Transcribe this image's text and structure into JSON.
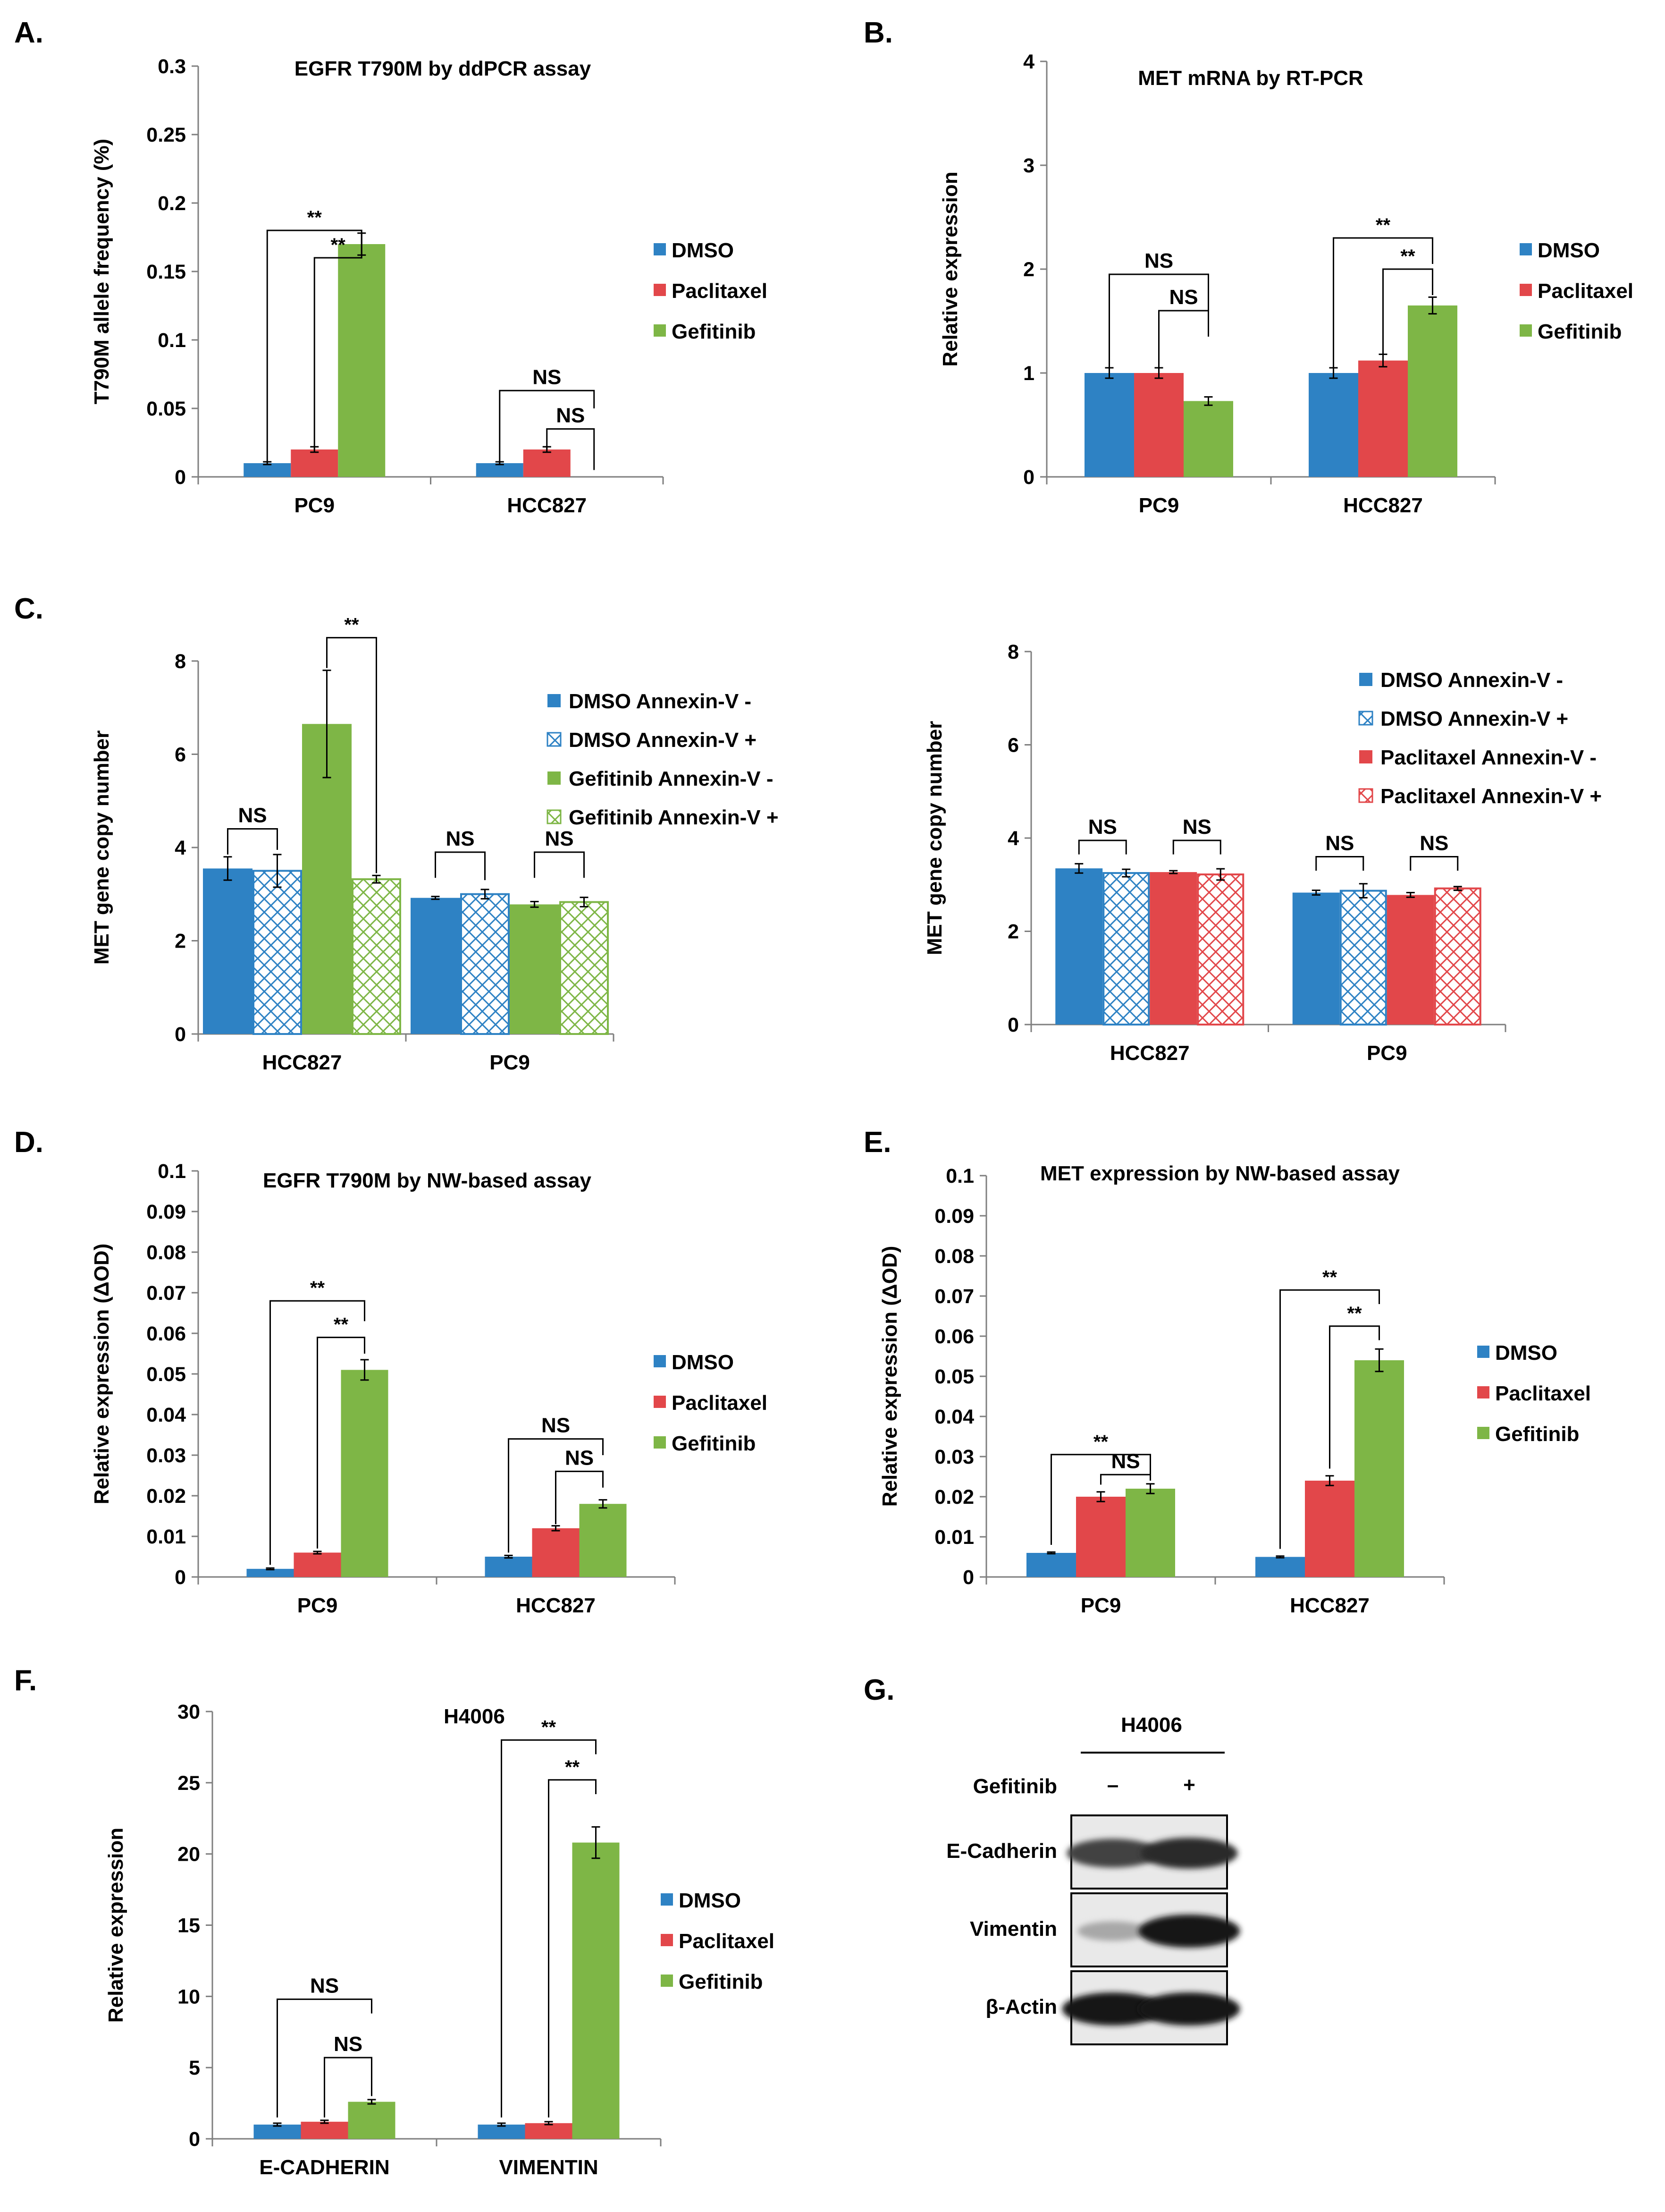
{
  "colors": {
    "DMSO": "#2E82C4",
    "Paclitaxel": "#E2474A",
    "Gefitinib": "#7EB646",
    "axis": "#7f7f7f",
    "text": "#000000"
  },
  "chart_data": [
    {
      "id": "A",
      "panel_label": "A.",
      "type": "bar",
      "title": "EGFR T790M by ddPCR assay",
      "ylabel": "T790M allele frequency (%)",
      "xlabel": "",
      "ylim": [
        0,
        0.3
      ],
      "yticks": [
        0,
        0.05,
        0.1,
        0.15,
        0.2,
        0.25,
        0.3
      ],
      "ytick_labels": [
        "0",
        "0.05",
        "0.1",
        "0.15",
        "0.2",
        "0.25",
        "0.3"
      ],
      "categories": [
        "PC9",
        "HCC827"
      ],
      "series": [
        {
          "name": "DMSO",
          "values": [
            0.01,
            0.01
          ],
          "errors": [
            0.001,
            0.001
          ]
        },
        {
          "name": "Paclitaxel",
          "values": [
            0.02,
            0.02
          ],
          "errors": [
            0.002,
            0.002
          ]
        },
        {
          "name": "Gefitinib",
          "values": [
            0.17,
            null
          ],
          "errors": [
            0.008,
            null
          ]
        }
      ],
      "legend": [
        "DMSO",
        "Paclitaxel",
        "Gefitinib"
      ],
      "significance": [
        {
          "cat": 0,
          "from": 0,
          "to": 2,
          "text": "**",
          "level": 0.18,
          "value_from": 0.01,
          "value_to": 0.17
        },
        {
          "cat": 0,
          "from": 1,
          "to": 2,
          "text": "**",
          "level": 0.16,
          "value_from": 0.02,
          "value_to": 0.17
        },
        {
          "cat": 1,
          "from": 0,
          "to": 2,
          "text": "NS",
          "level": 0.063,
          "value_from": 0.01,
          "value_to": 0.05
        },
        {
          "cat": 1,
          "from": 1,
          "to": 2,
          "text": "NS",
          "level": 0.035,
          "value_from": 0.02,
          "value_to": 0.005
        }
      ]
    },
    {
      "id": "B",
      "panel_label": "B.",
      "type": "bar",
      "title": "MET mRNA by RT-PCR",
      "ylabel": "Relative expression",
      "xlabel": "",
      "ylim": [
        0,
        4
      ],
      "yticks": [
        0,
        1,
        2,
        3,
        4
      ],
      "ytick_labels": [
        "0",
        "1",
        "2",
        "3",
        "4"
      ],
      "categories": [
        "PC9",
        "HCC827"
      ],
      "series": [
        {
          "name": "DMSO",
          "values": [
            1.0,
            1.0
          ],
          "errors": [
            0.05,
            0.05
          ]
        },
        {
          "name": "Paclitaxel",
          "values": [
            1.0,
            1.12
          ],
          "errors": [
            0.05,
            0.06
          ]
        },
        {
          "name": "Gefitinib",
          "values": [
            0.73,
            1.65
          ],
          "errors": [
            0.04,
            0.08
          ]
        }
      ],
      "legend": [
        "DMSO",
        "Paclitaxel",
        "Gefitinib"
      ],
      "significance": [
        {
          "cat": 0,
          "from": 0,
          "to": 2,
          "text": "NS",
          "level": 1.95,
          "value_from": 1.05,
          "value_to": 1.4
        },
        {
          "cat": 0,
          "from": 1,
          "to": 2,
          "text": "NS",
          "level": 1.6,
          "value_from": 1.05,
          "value_to": 1.35
        },
        {
          "cat": 1,
          "from": 0,
          "to": 2,
          "text": "**",
          "level": 2.3,
          "value_from": 1.05,
          "value_to": 2.05
        },
        {
          "cat": 1,
          "from": 1,
          "to": 2,
          "text": "**",
          "level": 2.0,
          "value_from": 1.18,
          "value_to": 1.75
        }
      ]
    },
    {
      "id": "C1",
      "panel_label": "C.",
      "type": "bar",
      "title": "",
      "ylabel": "MET gene copy number",
      "xlabel": "",
      "ylim": [
        0,
        8
      ],
      "yticks": [
        0,
        2,
        4,
        6,
        8
      ],
      "ytick_labels": [
        "0",
        "2",
        "4",
        "6",
        "8"
      ],
      "categories": [
        "HCC827",
        "PC9"
      ],
      "series": [
        {
          "name": "DMSO Annexin-V -",
          "values": [
            3.55,
            2.92
          ],
          "errors": [
            0.25,
            0.03
          ],
          "color": "#2E82C4",
          "hatch": false
        },
        {
          "name": "DMSO Annexin-V +",
          "values": [
            3.5,
            3.0
          ],
          "errors": [
            0.35,
            0.1
          ],
          "color": "#2E82C4",
          "hatch": true
        },
        {
          "name": "Gefitinib Annexin-V -",
          "values": [
            6.65,
            2.78
          ],
          "errors": [
            1.15,
            0.06
          ],
          "color": "#7EB646",
          "hatch": false
        },
        {
          "name": "Gefitinib Annexin-V +",
          "values": [
            3.32,
            2.83
          ],
          "errors": [
            0.08,
            0.1
          ],
          "color": "#7EB646",
          "hatch": true
        }
      ],
      "legend": [
        "DMSO Annexin-V -",
        "DMSO Annexin-V +",
        "Gefitinib Annexin-V -",
        "Gefitinib Annexin-V +"
      ],
      "significance": [
        {
          "cat": 0,
          "from": 0,
          "to": 1,
          "text": "NS",
          "level": 4.4,
          "value_from": 3.85,
          "value_to": 3.95
        },
        {
          "cat": 0,
          "from": 2,
          "to": 3,
          "text": "**",
          "level": 8.5,
          "value_from": 7.85,
          "value_to": 3.45
        },
        {
          "cat": 1,
          "from": 0,
          "to": 1,
          "text": "NS",
          "level": 3.9,
          "value_from": 3.35,
          "value_to": 3.3
        },
        {
          "cat": 1,
          "from": 2,
          "to": 3,
          "text": "NS",
          "level": 3.9,
          "value_from": 3.35,
          "value_to": 3.35
        }
      ]
    },
    {
      "id": "C2",
      "panel_label": "",
      "type": "bar",
      "title": "",
      "ylabel": "MET gene copy number",
      "xlabel": "",
      "ylim": [
        0,
        8
      ],
      "yticks": [
        0,
        2,
        4,
        6,
        8
      ],
      "ytick_labels": [
        "0",
        "2",
        "4",
        "6",
        "8"
      ],
      "categories": [
        "HCC827",
        "PC9"
      ],
      "series": [
        {
          "name": "DMSO Annexin-V -",
          "values": [
            3.35,
            2.83
          ],
          "errors": [
            0.1,
            0.05
          ],
          "color": "#2E82C4",
          "hatch": false
        },
        {
          "name": "DMSO Annexin-V +",
          "values": [
            3.25,
            2.87
          ],
          "errors": [
            0.08,
            0.15
          ],
          "color": "#2E82C4",
          "hatch": true
        },
        {
          "name": "Paclitaxel Annexin-V -",
          "values": [
            3.27,
            2.78
          ],
          "errors": [
            0.03,
            0.05
          ],
          "color": "#E2474A",
          "hatch": false
        },
        {
          "name": "Paclitaxel Annexin-V +",
          "values": [
            3.22,
            2.92
          ],
          "errors": [
            0.12,
            0.04
          ],
          "color": "#E2474A",
          "hatch": true
        }
      ],
      "legend": [
        "DMSO Annexin-V -",
        "DMSO Annexin-V +",
        "Paclitaxel Annexin-V -",
        "Paclitaxel Annexin-V +"
      ],
      "significance": [
        {
          "cat": 0,
          "from": 0,
          "to": 1,
          "text": "NS",
          "level": 3.95,
          "value_from": 3.65,
          "value_to": 3.65
        },
        {
          "cat": 0,
          "from": 2,
          "to": 3,
          "text": "NS",
          "level": 3.95,
          "value_from": 3.65,
          "value_to": 3.65
        },
        {
          "cat": 1,
          "from": 0,
          "to": 1,
          "text": "NS",
          "level": 3.6,
          "value_from": 3.3,
          "value_to": 3.3
        },
        {
          "cat": 1,
          "from": 2,
          "to": 3,
          "text": "NS",
          "level": 3.6,
          "value_from": 3.3,
          "value_to": 3.3
        }
      ]
    },
    {
      "id": "D",
      "panel_label": "D.",
      "type": "bar",
      "title": "EGFR T790M by NW-based assay",
      "ylabel": "Relative expression (ΔOD)",
      "xlabel": "",
      "ylim": [
        0,
        0.1
      ],
      "yticks": [
        0,
        0.01,
        0.02,
        0.03,
        0.04,
        0.05,
        0.06,
        0.07,
        0.08,
        0.09,
        0.1
      ],
      "ytick_labels": [
        "0",
        "0.01",
        "0.02",
        "0.03",
        "0.04",
        "0.05",
        "0.06",
        "0.07",
        "0.08",
        "0.09",
        "0.1"
      ],
      "categories": [
        "PC9",
        "HCC827"
      ],
      "series": [
        {
          "name": "DMSO",
          "values": [
            0.002,
            0.005
          ],
          "errors": [
            0.0002,
            0.0003
          ]
        },
        {
          "name": "Paclitaxel",
          "values": [
            0.006,
            0.012
          ],
          "errors": [
            0.0003,
            0.0006
          ]
        },
        {
          "name": "Gefitinib",
          "values": [
            0.051,
            0.018
          ],
          "errors": [
            0.0025,
            0.001
          ]
        }
      ],
      "legend": [
        "DMSO",
        "Paclitaxel",
        "Gefitinib"
      ],
      "significance": [
        {
          "cat": 0,
          "from": 0,
          "to": 2,
          "text": "**",
          "level": 0.068,
          "value_from": 0.003,
          "value_to": 0.063
        },
        {
          "cat": 0,
          "from": 1,
          "to": 2,
          "text": "**",
          "level": 0.059,
          "value_from": 0.007,
          "value_to": 0.055
        },
        {
          "cat": 1,
          "from": 0,
          "to": 2,
          "text": "NS",
          "level": 0.034,
          "value_from": 0.006,
          "value_to": 0.03
        },
        {
          "cat": 1,
          "from": 1,
          "to": 2,
          "text": "NS",
          "level": 0.026,
          "value_from": 0.013,
          "value_to": 0.022
        }
      ]
    },
    {
      "id": "E",
      "panel_label": "E.",
      "type": "bar",
      "title": "MET expression by NW-based assay",
      "ylabel": "Relative expression (ΔOD)",
      "xlabel": "",
      "ylim": [
        0,
        0.1
      ],
      "yticks": [
        0,
        0.01,
        0.02,
        0.03,
        0.04,
        0.05,
        0.06,
        0.07,
        0.08,
        0.09,
        0.1
      ],
      "ytick_labels": [
        "0",
        "0.01",
        "0.02",
        "0.03",
        "0.04",
        "0.05",
        "0.06",
        "0.07",
        "0.08",
        "0.09",
        "0.1"
      ],
      "categories": [
        "PC9",
        "HCC827"
      ],
      "series": [
        {
          "name": "DMSO",
          "values": [
            0.006,
            0.005
          ],
          "errors": [
            0.0002,
            0.0002
          ]
        },
        {
          "name": "Paclitaxel",
          "values": [
            0.02,
            0.024
          ],
          "errors": [
            0.0012,
            0.0012
          ]
        },
        {
          "name": "Gefitinib",
          "values": [
            0.022,
            0.054
          ],
          "errors": [
            0.0012,
            0.0028
          ]
        }
      ],
      "legend": [
        "DMSO",
        "Paclitaxel",
        "Gefitinib"
      ],
      "significance": [
        {
          "cat": 0,
          "from": 0,
          "to": 2,
          "text": "**",
          "level": 0.0305,
          "value_from": 0.008,
          "value_to": 0.025
        },
        {
          "cat": 0,
          "from": 1,
          "to": 2,
          "text": "NS",
          "level": 0.0255,
          "value_from": 0.023,
          "value_to": 0.024
        },
        {
          "cat": 1,
          "from": 0,
          "to": 2,
          "text": "**",
          "level": 0.0715,
          "value_from": 0.007,
          "value_to": 0.068
        },
        {
          "cat": 1,
          "from": 1,
          "to": 2,
          "text": "**",
          "level": 0.0625,
          "value_from": 0.027,
          "value_to": 0.059
        }
      ]
    },
    {
      "id": "F",
      "panel_label": "F.",
      "type": "bar",
      "title": "H4006",
      "ylabel": "Relative expression",
      "xlabel": "",
      "ylim": [
        0,
        30
      ],
      "yticks": [
        0,
        5,
        10,
        15,
        20,
        25,
        30
      ],
      "ytick_labels": [
        "0",
        "5",
        "10",
        "15",
        "20",
        "25",
        "30"
      ],
      "categories": [
        "E-CADHERIN",
        "VIMENTIN"
      ],
      "series": [
        {
          "name": "DMSO",
          "values": [
            1.0,
            1.0
          ],
          "errors": [
            0.1,
            0.1
          ]
        },
        {
          "name": "Paclitaxel",
          "values": [
            1.2,
            1.1
          ],
          "errors": [
            0.1,
            0.1
          ]
        },
        {
          "name": "Gefitinib",
          "values": [
            2.6,
            20.8
          ],
          "errors": [
            0.15,
            1.1
          ]
        }
      ],
      "legend": [
        "DMSO",
        "Paclitaxel",
        "Gefitinib"
      ],
      "significance": [
        {
          "cat": 0,
          "from": 0,
          "to": 2,
          "text": "NS",
          "level": 9.8,
          "value_from": 1.5,
          "value_to": 8.8
        },
        {
          "cat": 0,
          "from": 1,
          "to": 2,
          "text": "NS",
          "level": 5.7,
          "value_from": 1.5,
          "value_to": 3.0
        },
        {
          "cat": 1,
          "from": 0,
          "to": 2,
          "text": "**",
          "level": 28.0,
          "value_from": 1.5,
          "value_to": 27.0
        },
        {
          "cat": 1,
          "from": 1,
          "to": 2,
          "text": "**",
          "level": 25.2,
          "value_from": 1.5,
          "value_to": 24.2
        }
      ]
    }
  ],
  "blot": {
    "panel_label": "G.",
    "title": "H4006",
    "treatment_label": "Gefitinib",
    "lanes": [
      "–",
      "+"
    ],
    "rows": [
      {
        "label": "E-Cadherin",
        "intensities": [
          0.75,
          0.85
        ]
      },
      {
        "label": "Vimentin",
        "intensities": [
          0.3,
          0.95
        ]
      },
      {
        "label": "β-Actin",
        "intensities": [
          0.95,
          0.95
        ]
      }
    ]
  }
}
